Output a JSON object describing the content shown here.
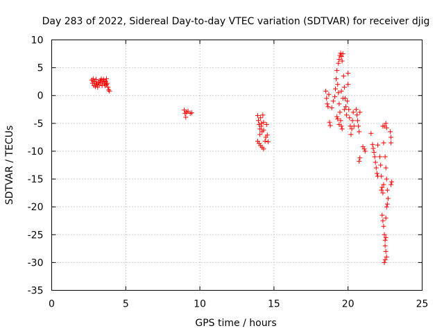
{
  "chart_data": {
    "type": "scatter",
    "title": "Day 283 of 2022, Sidereal Day-to-day VTEC variation (SDTVAR) for receiver djig",
    "xlabel": "GPS time / hours",
    "ylabel": "SDTVAR / TECUs",
    "xlim": [
      0,
      25
    ],
    "ylim": [
      -35,
      10
    ],
    "xticks": [
      0,
      5,
      10,
      15,
      20,
      25
    ],
    "yticks": [
      10,
      5,
      0,
      -5,
      -10,
      -15,
      -20,
      -25,
      -30,
      -35
    ],
    "grid": true,
    "marker": "+",
    "color": "#ff0000",
    "series": [
      {
        "name": "SDTVAR",
        "points": [
          [
            2.7,
            2.8
          ],
          [
            2.75,
            2.2
          ],
          [
            2.8,
            3.0
          ],
          [
            2.85,
            1.8
          ],
          [
            2.9,
            2.5
          ],
          [
            2.95,
            1.6
          ],
          [
            3.0,
            2.9
          ],
          [
            3.05,
            2.0
          ],
          [
            3.1,
            1.5
          ],
          [
            3.15,
            2.4
          ],
          [
            3.2,
            1.9
          ],
          [
            3.25,
            2.6
          ],
          [
            3.3,
            2.2
          ],
          [
            3.35,
            3.0
          ],
          [
            3.4,
            1.8
          ],
          [
            3.45,
            2.4
          ],
          [
            3.5,
            2.9
          ],
          [
            3.55,
            2.1
          ],
          [
            3.6,
            1.8
          ],
          [
            3.65,
            2.6
          ],
          [
            3.7,
            3.0
          ],
          [
            3.75,
            2.2
          ],
          [
            3.8,
            1.5
          ],
          [
            3.85,
            1.0
          ],
          [
            3.9,
            0.8
          ],
          [
            3.55,
            2.5
          ],
          [
            3.7,
            2.0
          ],
          [
            2.8,
            2.6
          ],
          [
            3.0,
            2.2
          ],
          [
            3.3,
            2.7
          ],
          [
            8.95,
            -2.6
          ],
          [
            9.0,
            -3.2
          ],
          [
            9.05,
            -3.9
          ],
          [
            9.1,
            -3.0
          ],
          [
            9.2,
            -2.8
          ],
          [
            9.35,
            -3.2
          ],
          [
            9.45,
            -3.1
          ],
          [
            13.9,
            -3.6
          ],
          [
            13.95,
            -4.5
          ],
          [
            14.0,
            -5.2
          ],
          [
            14.05,
            -6.0
          ],
          [
            14.1,
            -4.0
          ],
          [
            14.15,
            -5.5
          ],
          [
            14.2,
            -6.5
          ],
          [
            14.25,
            -3.5
          ],
          [
            14.3,
            -4.8
          ],
          [
            14.05,
            -7.0
          ],
          [
            13.9,
            -8.2
          ],
          [
            14.0,
            -8.6
          ],
          [
            14.1,
            -9.0
          ],
          [
            14.2,
            -9.3
          ],
          [
            14.3,
            -9.6
          ],
          [
            14.4,
            -8.2
          ],
          [
            14.45,
            -7.5
          ],
          [
            14.5,
            -5.2
          ],
          [
            14.55,
            -7.1
          ],
          [
            14.6,
            -8.3
          ],
          [
            14.15,
            -5.0
          ],
          [
            14.3,
            -6.2
          ],
          [
            18.5,
            0.8
          ],
          [
            18.55,
            -0.5
          ],
          [
            18.6,
            -1.5
          ],
          [
            18.65,
            -2.0
          ],
          [
            18.7,
            0.2
          ],
          [
            18.75,
            -4.8
          ],
          [
            18.8,
            -5.4
          ],
          [
            18.9,
            -2.2
          ],
          [
            19.0,
            -1.0
          ],
          [
            19.1,
            -0.2
          ],
          [
            19.15,
            1.2
          ],
          [
            19.2,
            3.0
          ],
          [
            19.25,
            4.5
          ],
          [
            19.3,
            2.0
          ],
          [
            19.35,
            0.5
          ],
          [
            19.4,
            -1.5
          ],
          [
            19.45,
            -3.0
          ],
          [
            19.5,
            -4.5
          ],
          [
            19.55,
            -5.5
          ],
          [
            19.6,
            -6.0
          ],
          [
            19.35,
            5.8
          ],
          [
            19.4,
            6.5
          ],
          [
            19.45,
            7.2
          ],
          [
            19.5,
            7.6
          ],
          [
            19.55,
            7.0
          ],
          [
            19.6,
            6.2
          ],
          [
            19.65,
            7.5
          ],
          [
            19.7,
            3.5
          ],
          [
            19.75,
            1.5
          ],
          [
            19.8,
            -0.5
          ],
          [
            19.85,
            -2.0
          ],
          [
            19.9,
            -3.5
          ],
          [
            19.95,
            -1.0
          ],
          [
            20.0,
            4.0
          ],
          [
            20.0,
            2.0
          ],
          [
            20.05,
            -2.5
          ],
          [
            20.1,
            -4.0
          ],
          [
            20.15,
            -5.5
          ],
          [
            20.2,
            -7.0
          ],
          [
            20.25,
            -6.0
          ],
          [
            20.3,
            -4.5
          ],
          [
            20.35,
            -3.0
          ],
          [
            20.4,
            -5.5
          ],
          [
            19.3,
            -4.2
          ],
          [
            19.4,
            -5.2
          ],
          [
            19.25,
            -3.8
          ],
          [
            19.55,
            0.8
          ],
          [
            19.65,
            -0.5
          ],
          [
            19.75,
            -2.5
          ],
          [
            20.55,
            -2.5
          ],
          [
            20.6,
            -3.5
          ],
          [
            20.65,
            -4.5
          ],
          [
            20.7,
            -5.5
          ],
          [
            20.75,
            -6.5
          ],
          [
            20.8,
            -3.0
          ],
          [
            20.75,
            -11.8
          ],
          [
            20.8,
            -11.2
          ],
          [
            21.0,
            -9.2
          ],
          [
            21.1,
            -9.6
          ],
          [
            21.15,
            -10.0
          ],
          [
            21.55,
            -6.8
          ],
          [
            21.65,
            -8.8
          ],
          [
            21.7,
            -9.5
          ],
          [
            21.75,
            -10.2
          ],
          [
            21.8,
            -11.0
          ],
          [
            21.85,
            -12.0
          ],
          [
            21.9,
            -13.0
          ],
          [
            21.95,
            -14.0
          ],
          [
            22.0,
            -14.5
          ],
          [
            22.0,
            -8.9
          ],
          [
            22.15,
            -11.0
          ],
          [
            22.2,
            -12.5
          ],
          [
            22.25,
            -14.5
          ],
          [
            22.3,
            -16.5
          ],
          [
            22.35,
            -17.5
          ],
          [
            22.4,
            -16.0
          ],
          [
            22.25,
            -17.0
          ],
          [
            22.3,
            -21.5
          ],
          [
            22.35,
            -22.5
          ],
          [
            22.4,
            -23.5
          ],
          [
            22.45,
            -25.0
          ],
          [
            22.5,
            -26.0
          ],
          [
            22.55,
            -25.5
          ],
          [
            22.5,
            -27.0
          ],
          [
            22.55,
            -28.0
          ],
          [
            22.6,
            -29.0
          ],
          [
            22.45,
            -30.0
          ],
          [
            22.5,
            -29.5
          ],
          [
            22.55,
            -22.0
          ],
          [
            22.6,
            -20.0
          ],
          [
            22.65,
            -19.5
          ],
          [
            22.5,
            -11.0
          ],
          [
            22.55,
            -13.0
          ],
          [
            22.6,
            -15.0
          ],
          [
            22.65,
            -17.0
          ],
          [
            22.7,
            -18.5
          ],
          [
            22.45,
            -5.5
          ],
          [
            22.55,
            -5.0
          ],
          [
            22.6,
            -5.8
          ],
          [
            22.35,
            -5.5
          ],
          [
            22.4,
            -8.5
          ],
          [
            22.85,
            -6.5
          ],
          [
            22.9,
            -7.5
          ],
          [
            22.9,
            -8.5
          ],
          [
            22.95,
            -15.5
          ],
          [
            22.9,
            -16.0
          ]
        ]
      }
    ]
  }
}
